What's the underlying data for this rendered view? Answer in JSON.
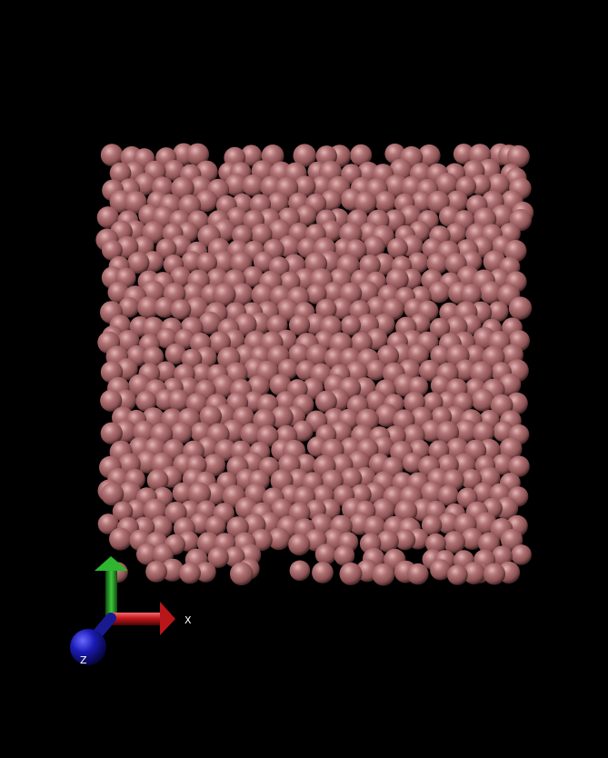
{
  "viewer": {
    "background": "#000000",
    "atom_color": "#a8686a",
    "atom_style": "spheres"
  },
  "axes": {
    "x": {
      "label": "X",
      "color": "#c0181c",
      "icon": "x-axis-arrow-icon"
    },
    "y": {
      "label": "",
      "color": "#2a9c2a",
      "icon": "y-axis-arrow-icon"
    },
    "z": {
      "label": "Z",
      "color": "#1a1aa8",
      "icon": "z-axis-sphere-icon"
    }
  }
}
